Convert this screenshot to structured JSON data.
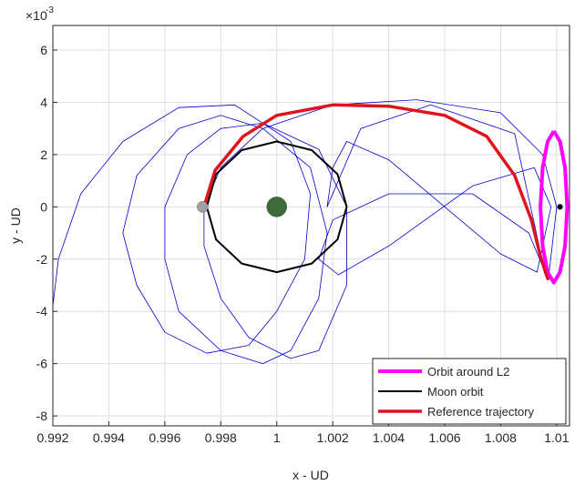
{
  "chart_data": {
    "type": "line",
    "xlabel": "x - UD",
    "ylabel": "y - UD",
    "y_exponent_base": "×10",
    "y_exponent": "-3",
    "xlim": [
      0.992,
      1.01046
    ],
    "ylim": [
      -8.38,
      6.94
    ],
    "xticks": [
      0.992,
      0.994,
      0.996,
      0.998,
      1,
      1.002,
      1.004,
      1.006,
      1.008,
      1.01
    ],
    "yticks": [
      -8,
      -6,
      -4,
      -2,
      0,
      2,
      4,
      6
    ],
    "grid": true,
    "legend": "lower right",
    "series": [
      {
        "color": "#0000cc",
        "width": 0.8,
        "x": [
          0.992,
          0.9922,
          0.993,
          0.9945,
          0.9965,
          0.9985,
          1.0005,
          1.0012,
          1.001,
          1.0,
          0.999,
          0.9975,
          0.996,
          0.995,
          0.9945,
          0.995,
          0.9965,
          0.998,
          0.9995,
          1.0012,
          1.0018,
          1.0015,
          1.0005,
          0.9995,
          0.998,
          0.9965,
          0.996,
          0.996,
          0.9968,
          0.998,
          0.9995,
          1.0015,
          1.0025,
          1.0025,
          1.0015,
          1.0005,
          0.999,
          0.998,
          0.9974,
          0.9974,
          0.998,
          0.9995,
          1.002,
          1.005,
          1.008,
          1.0095,
          1.01,
          1.0097,
          1.009,
          1.007,
          1.004,
          1.002,
          1.0015,
          1.0022,
          1.004,
          1.007,
          1.0092,
          1.0098,
          1.0093,
          1.008,
          1.006,
          1.004,
          1.0025,
          1.002,
          1.0018,
          1.003,
          1.0055,
          1.0085,
          1.0096
        ],
        "y": [
          -3.8,
          -2,
          0.5,
          2.5,
          3.8,
          3.9,
          2.5,
          0.5,
          -2,
          -4,
          -5.3,
          -5.6,
          -4.8,
          -3,
          -1,
          1.2,
          3,
          3.5,
          3,
          1.5,
          -1,
          -3.5,
          -5.5,
          -6,
          -5.5,
          -4,
          -2,
          0,
          2,
          3,
          3.2,
          2.2,
          0,
          -3,
          -5.5,
          -5.8,
          -5,
          -3.5,
          -1.5,
          0,
          1.5,
          3,
          3.9,
          4.1,
          3.6,
          2,
          0,
          -2.8,
          -1,
          0.5,
          0.5,
          -0.5,
          -2,
          -2.6,
          -1.5,
          0.8,
          1.5,
          0,
          -2.5,
          -1.8,
          0,
          1.8,
          2.5,
          1.5,
          0,
          3,
          3.9,
          2.8,
          -2.6
        ]
      },
      {
        "name": "Orbit around L2",
        "color": "#ff00ff",
        "width": 4,
        "x": [
          1.0099,
          1.01012,
          1.0103,
          1.01038,
          1.0103,
          1.01012,
          1.0099,
          1.00968,
          1.0095,
          1.00942,
          1.0095,
          1.00968,
          1.0099
        ],
        "y": [
          2.9,
          2.5,
          1.5,
          0,
          -1.5,
          -2.5,
          -2.9,
          -2.5,
          -1.5,
          0,
          1.5,
          2.5,
          2.9
        ]
      },
      {
        "name": "Moon orbit",
        "color": "#000000",
        "width": 2,
        "x": [
          1.0025,
          1.00217,
          1.00125,
          1.0,
          0.99875,
          0.99783,
          0.9975,
          0.99783,
          0.99875,
          1.0,
          1.00125,
          1.00217,
          1.0025
        ],
        "y": [
          0,
          1.25,
          2.17,
          2.5,
          2.17,
          1.25,
          0,
          -1.25,
          -2.17,
          -2.5,
          -2.17,
          -1.25,
          0
        ]
      },
      {
        "name": "Reference trajectory",
        "color": "#e0141e",
        "width": 3.5,
        "x": [
          0.9974,
          0.9978,
          0.9988,
          1.0,
          1.002,
          1.004,
          1.006,
          1.0075,
          1.0085,
          1.0091,
          1.0094,
          1.0096,
          1.0097
        ],
        "y": [
          0,
          1.4,
          2.7,
          3.5,
          3.9,
          3.85,
          3.5,
          2.7,
          1.2,
          -0.5,
          -1.8,
          -2.5,
          -2.8
        ]
      }
    ],
    "bodies": [
      {
        "x": 1.0,
        "y": 0,
        "color": "#3d6b3a",
        "size": 11
      },
      {
        "x": 0.99735,
        "y": 0,
        "color": "#a0a0a0",
        "size": 6
      },
      {
        "x": 1.01012,
        "y": 0,
        "color": "#000000",
        "size": 3
      }
    ]
  }
}
